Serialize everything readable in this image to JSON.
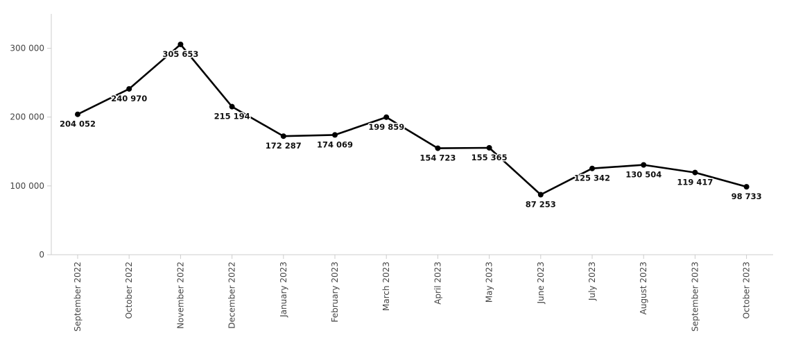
{
  "chart_data": {
    "type": "line",
    "categories": [
      "September 2022",
      "October 2022",
      "November 2022",
      "December 2022",
      "January 2023",
      "February 2023",
      "March 2023",
      "April 2023",
      "May 2023",
      "June 2023",
      "July 2023",
      "August 2023",
      "September 2023",
      "October 2023"
    ],
    "series": [
      {
        "values": [
          204052,
          240970,
          305653,
          215194,
          172287,
          174069,
          199859,
          154723,
          155365,
          87253,
          125342,
          130504,
          119417,
          98733
        ],
        "labels": [
          "204 052",
          "240 970",
          "305 653",
          "215 194",
          "172 287",
          "174 069",
          "199 859",
          "154 723",
          "155 365",
          "87 253",
          "125 342",
          "130 504",
          "119 417",
          "98 733"
        ],
        "color": "#000000"
      }
    ],
    "title": "",
    "xlabel": "",
    "ylabel": "",
    "ylim": [
      0,
      350000
    ],
    "yticks": [
      0,
      100000,
      200000,
      300000
    ],
    "ytick_labels": [
      "0",
      "100 000",
      "200 000",
      "300 000"
    ],
    "grid": false,
    "legend": "none"
  }
}
